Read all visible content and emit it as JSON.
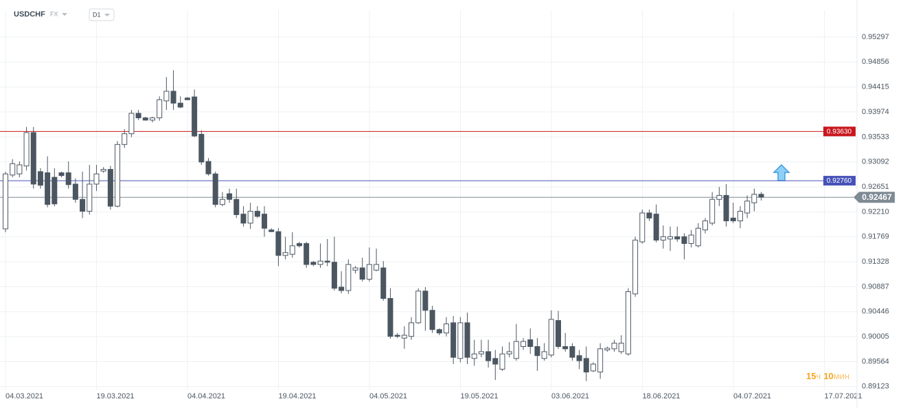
{
  "header": {
    "symbol": "USDCHF",
    "market": "FX",
    "timeframe": "D1"
  },
  "chart_data": {
    "type": "candlestick",
    "x_labels": [
      "04.03.2021",
      "19.03.2021",
      "04.04.2021",
      "19.04.2021",
      "04.05.2021",
      "19.05.2021",
      "03.06.2021",
      "18.06.2021",
      "04.07.2021",
      "17.07.2021"
    ],
    "open": [
      0.9191,
      0.9286,
      0.9288,
      0.9302,
      0.9361,
      0.9292,
      0.929,
      0.9282,
      0.929,
      0.929,
      0.927,
      0.9243,
      0.9222,
      0.927,
      0.9293,
      0.9296,
      0.9231,
      0.934,
      0.9359,
      0.9395,
      0.9387,
      0.9383,
      0.9387,
      0.9417,
      0.9434,
      0.9413,
      0.9422,
      0.9424,
      0.9358,
      0.931,
      0.9288,
      0.9234,
      0.9253,
      0.9243,
      0.9217,
      0.9201,
      0.9222,
      0.9217,
      0.9189,
      0.9186,
      0.9144,
      0.9146,
      0.9165,
      0.9165,
      0.9132,
      0.9128,
      0.9134,
      0.9132,
      0.9088,
      0.9082,
      0.9118,
      0.9122,
      0.9102,
      0.9118,
      0.9122,
      0.9068,
      0.9003,
      0.8998,
      0.9001,
      0.9025,
      0.9081,
      0.9047,
      0.9013,
      0.9007,
      0.9025,
      0.8962,
      0.9025,
      0.8962,
      0.897,
      0.8974,
      0.8962,
      0.8943,
      0.897,
      0.8962,
      0.8983,
      0.8995,
      0.8983,
      0.8962,
      0.8968,
      0.9029,
      0.8983,
      0.8983,
      0.8967,
      0.8962,
      0.894,
      0.8938,
      0.8977,
      0.8979,
      0.8974,
      0.897,
      0.9076,
      0.9168,
      0.9219,
      0.9217,
      0.9171,
      0.9173,
      0.9177,
      0.9177,
      0.9165,
      0.9161,
      0.9189,
      0.9201,
      0.9243,
      0.925,
      0.921,
      0.9205,
      0.9219,
      0.9237,
      0.9252
    ],
    "high": [
      0.9292,
      0.9314,
      0.931,
      0.9371,
      0.9371,
      0.9298,
      0.9319,
      0.9298,
      0.9292,
      0.931,
      0.928,
      0.9292,
      0.9304,
      0.9304,
      0.93,
      0.9302,
      0.9346,
      0.9367,
      0.9401,
      0.9401,
      0.9389,
      0.9389,
      0.9425,
      0.9459,
      0.9471,
      0.9425,
      0.9424,
      0.9437,
      0.9365,
      0.9316,
      0.9292,
      0.9256,
      0.9262,
      0.9262,
      0.9231,
      0.9237,
      0.9231,
      0.9231,
      0.9192,
      0.9192,
      0.9177,
      0.9185,
      0.9168,
      0.9168,
      0.9134,
      0.9165,
      0.9173,
      0.9177,
      0.9116,
      0.9137,
      0.9125,
      0.914,
      0.9158,
      0.9156,
      0.9134,
      0.9086,
      0.9007,
      0.9019,
      0.9035,
      0.9086,
      0.9088,
      0.9055,
      0.9015,
      0.9035,
      0.9037,
      0.9035,
      0.9043,
      0.8995,
      0.8995,
      0.8995,
      0.8977,
      0.8983,
      0.8991,
      0.9023,
      0.8998,
      0.9015,
      0.8998,
      0.8989,
      0.9047,
      0.9046,
      0.9007,
      0.8989,
      0.8977,
      0.8983,
      0.8955,
      0.8989,
      0.8983,
      0.8995,
      0.9003,
      0.9086,
      0.9177,
      0.9225,
      0.9225,
      0.9234,
      0.9197,
      0.9195,
      0.9195,
      0.9183,
      0.9189,
      0.9201,
      0.921,
      0.9256,
      0.9265,
      0.927,
      0.9237,
      0.9231,
      0.925,
      0.9262,
      0.9256
    ],
    "low": [
      0.9185,
      0.9282,
      0.9282,
      0.9294,
      0.9262,
      0.9262,
      0.9229,
      0.9231,
      0.9282,
      0.9262,
      0.9237,
      0.921,
      0.9216,
      0.9258,
      0.929,
      0.9225,
      0.9229,
      0.9334,
      0.9353,
      0.9383,
      0.9382,
      0.9379,
      0.9382,
      0.9401,
      0.9401,
      0.9404,
      0.9419,
      0.9353,
      0.9304,
      0.9285,
      0.9229,
      0.9231,
      0.9237,
      0.921,
      0.9195,
      0.9191,
      0.921,
      0.9177,
      0.9185,
      0.9125,
      0.9137,
      0.914,
      0.9158,
      0.9122,
      0.9125,
      0.9122,
      0.9125,
      0.9082,
      0.9077,
      0.9076,
      0.9112,
      0.9098,
      0.9098,
      0.9116,
      0.9064,
      0.8997,
      0.8998,
      0.8979,
      0.8995,
      0.9023,
      0.9011,
      0.9007,
      0.9003,
      0.9001,
      0.8952,
      0.8955,
      0.8952,
      0.8949,
      0.8964,
      0.8946,
      0.8924,
      0.894,
      0.8964,
      0.8958,
      0.8977,
      0.897,
      0.894,
      0.8958,
      0.8964,
      0.8979,
      0.8974,
      0.8958,
      0.8943,
      0.8922,
      0.8938,
      0.8926,
      0.8974,
      0.8974,
      0.897,
      0.8967,
      0.9071,
      0.9165,
      0.9205,
      0.9167,
      0.9156,
      0.9152,
      0.9168,
      0.9137,
      0.9158,
      0.9158,
      0.9183,
      0.9197,
      0.9231,
      0.9195,
      0.9201,
      0.9192,
      0.921,
      0.9222,
      0.9241
    ],
    "close": [
      0.9288,
      0.9306,
      0.9304,
      0.9361,
      0.927,
      0.9268,
      0.9234,
      0.9235,
      0.9285,
      0.9269,
      0.9243,
      0.9222,
      0.927,
      0.9288,
      0.9296,
      0.9231,
      0.934,
      0.9359,
      0.9395,
      0.9387,
      0.9383,
      0.9387,
      0.9419,
      0.9434,
      0.9413,
      0.9406,
      0.9419,
      0.9355,
      0.9309,
      0.9288,
      0.9234,
      0.9243,
      0.9243,
      0.9216,
      0.9201,
      0.9222,
      0.9213,
      0.9192,
      0.9186,
      0.9144,
      0.9149,
      0.9161,
      0.9161,
      0.9128,
      0.9128,
      0.9134,
      0.9132,
      0.9086,
      0.9082,
      0.9128,
      0.9122,
      0.9102,
      0.9128,
      0.9128,
      0.9068,
      0.9001,
      0.9001,
      0.9003,
      0.9025,
      0.9081,
      0.9047,
      0.9013,
      0.9007,
      0.9023,
      0.8964,
      0.9025,
      0.8964,
      0.897,
      0.8974,
      0.8958,
      0.8952,
      0.897,
      0.8974,
      0.8992,
      0.8992,
      0.8983,
      0.8967,
      0.8974,
      0.9031,
      0.8983,
      0.8979,
      0.8964,
      0.8958,
      0.8938,
      0.8952,
      0.8979,
      0.898,
      0.8989,
      0.8989,
      0.908,
      0.9171,
      0.9219,
      0.921,
      0.9171,
      0.9177,
      0.9177,
      0.9173,
      0.9165,
      0.918,
      0.9192,
      0.9205,
      0.9243,
      0.925,
      0.9205,
      0.9205,
      0.9222,
      0.924,
      0.9252,
      0.9247
    ],
    "ylim": [
      0.8906,
      0.9577
    ],
    "yticks": [
      0.95297,
      0.94856,
      0.94415,
      0.93974,
      0.93533,
      0.93092,
      0.92651,
      {
        "value": 0.9221,
        "label": "0.92210"
      },
      0.91769,
      0.91328,
      0.90887,
      0.90446,
      0.90005,
      0.89564,
      0.89123
    ],
    "grid": true,
    "up_color": "#ffffff",
    "down_color": "#4b5661",
    "levels": [
      {
        "value": 0.9363,
        "label": "0.93630",
        "color": "#c8171e"
      },
      {
        "value": 0.9276,
        "label": "0.92760",
        "color": "#4652b8"
      }
    ],
    "current_price": 0.92467,
    "current_color": "#7e8a94",
    "timer": {
      "hours": 15,
      "hours_unit": "ч",
      "minutes": 10,
      "minutes_unit": "мин"
    }
  }
}
